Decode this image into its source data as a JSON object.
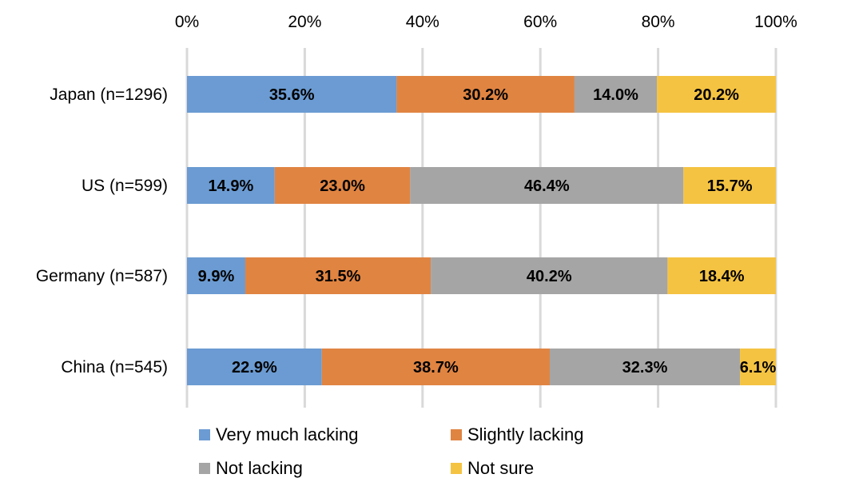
{
  "chart_data": {
    "type": "bar",
    "orientation": "horizontal",
    "stacked": true,
    "categories": [
      "Japan (n=1296)",
      "US (n=599)",
      "Germany (n=587)",
      "China (n=545)"
    ],
    "series": [
      {
        "name": "Very much lacking",
        "color": "#6b9bd2",
        "values": [
          35.6,
          14.9,
          9.9,
          22.9
        ],
        "labels": [
          "35.6%",
          "14.9%",
          "9.9%",
          "22.9%"
        ]
      },
      {
        "name": "Slightly lacking",
        "color": "#e08442",
        "values": [
          30.2,
          23.0,
          31.5,
          38.7
        ],
        "labels": [
          "30.2%",
          "23.0%",
          "31.5%",
          "38.7%"
        ]
      },
      {
        "name": "Not lacking",
        "color": "#a5a5a5",
        "values": [
          14.0,
          46.4,
          40.2,
          32.3
        ],
        "labels": [
          "14.0%",
          "46.4%",
          "40.2%",
          "32.3%"
        ]
      },
      {
        "name": "Not sure",
        "color": "#f5c342",
        "values": [
          20.2,
          15.7,
          18.4,
          6.1
        ],
        "labels": [
          "20.2%",
          "15.7%",
          "18.4%",
          "6.1%"
        ]
      }
    ],
    "xlim": [
      0,
      100
    ],
    "x_ticks": [
      0,
      20,
      40,
      60,
      80,
      100
    ],
    "x_tick_labels": [
      "0%",
      "20%",
      "40%",
      "60%",
      "80%",
      "100%"
    ],
    "x_axis_position": "top",
    "grid": true,
    "legend_position": "bottom",
    "title": "",
    "xlabel": "",
    "ylabel": ""
  }
}
